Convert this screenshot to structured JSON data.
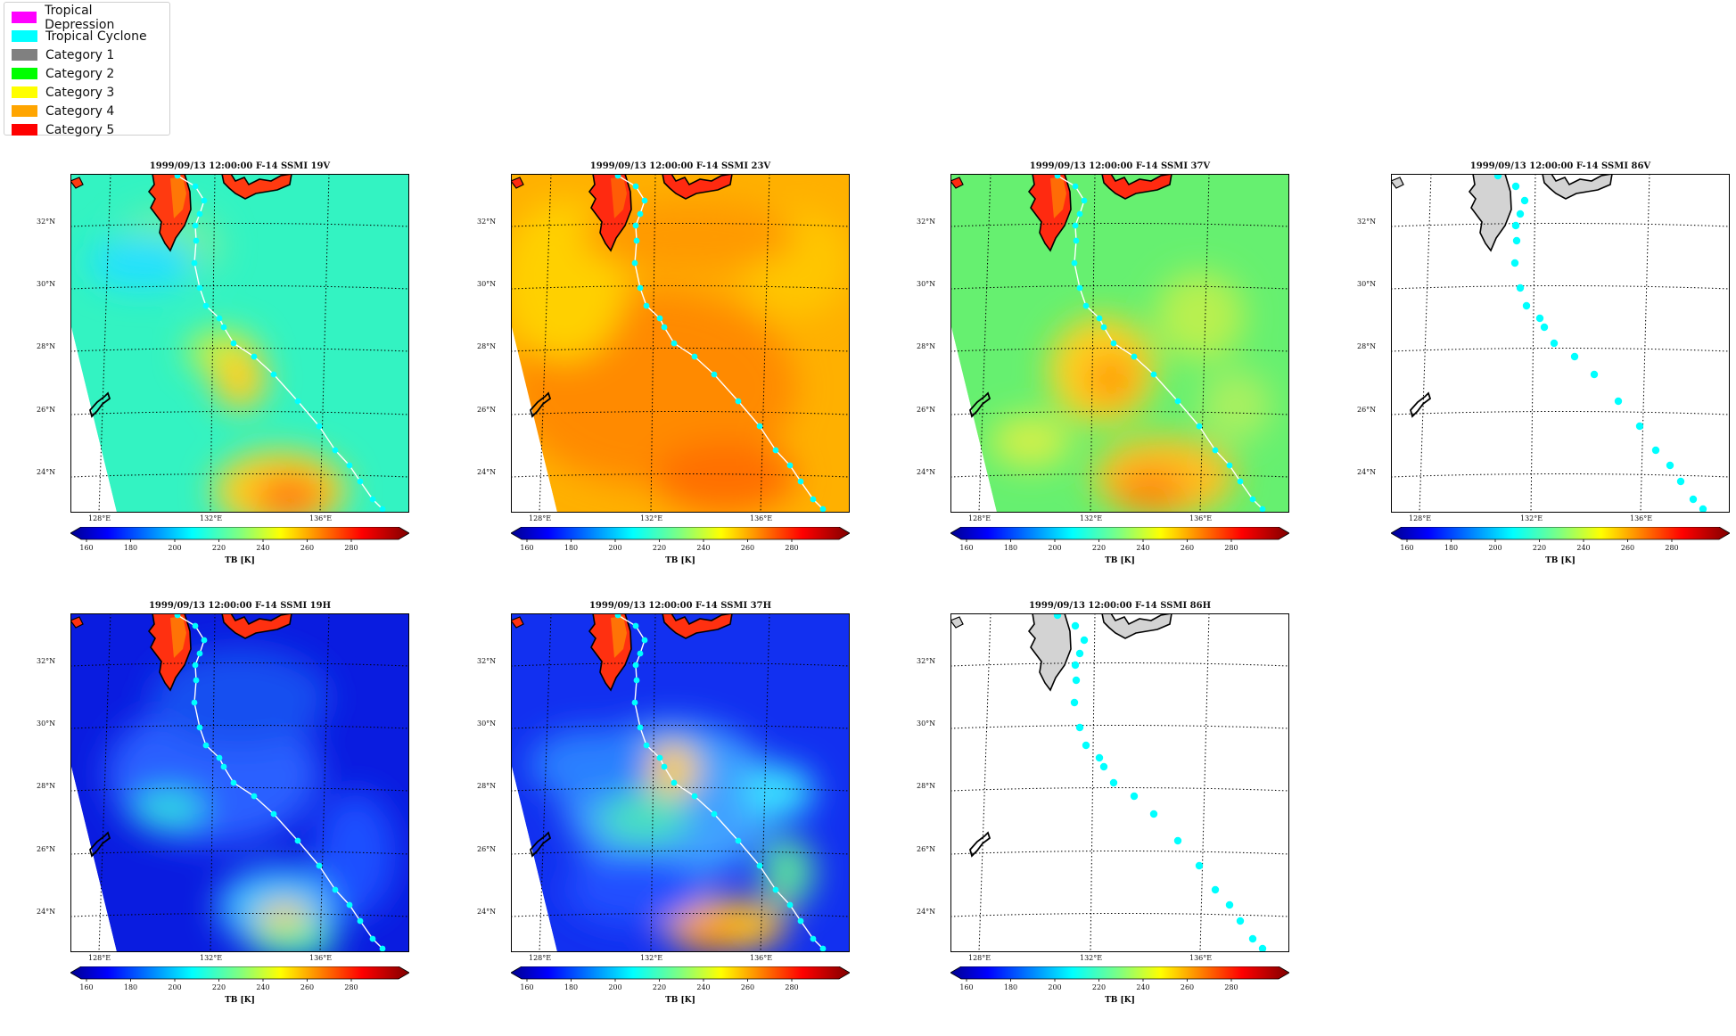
{
  "legend": {
    "items": [
      {
        "label": "Tropical Depression",
        "color": "#ff00ff"
      },
      {
        "label": "Tropical Cyclone",
        "color": "#00ffff"
      },
      {
        "label": "Category 1",
        "color": "#808080"
      },
      {
        "label": "Category 2",
        "color": "#00ff00"
      },
      {
        "label": "Category 3",
        "color": "#ffff00"
      },
      {
        "label": "Category 4",
        "color": "#ffa500"
      },
      {
        "label": "Category 5",
        "color": "#ff0000"
      }
    ]
  },
  "lat_labels": [
    "32°N",
    "30°N",
    "28°N",
    "26°N",
    "24°N"
  ],
  "lon_labels": [
    "128°E",
    "132°E",
    "136°E"
  ],
  "colorbar": {
    "ticks": [
      "160",
      "180",
      "200",
      "220",
      "240",
      "260",
      "280"
    ],
    "label": "TB [K]"
  },
  "panels": [
    {
      "title": "1999/09/13 12:00:00  F-14 SSMI 19V",
      "style": "19V"
    },
    {
      "title": "1999/09/13 12:00:00  F-14 SSMI 23V",
      "style": "23V"
    },
    {
      "title": "1999/09/13 12:00:00  F-14 SSMI 37V",
      "style": "37V"
    },
    {
      "title": "1999/09/13 12:00:00  F-14 SSMI 86V",
      "style": "86"
    },
    {
      "title": "1999/09/13 12:00:00  F-14 SSMI 19H",
      "style": "19H"
    },
    {
      "title": "1999/09/13 12:00:00  F-14 SSMI 37H",
      "style": "37H"
    },
    {
      "title": "1999/09/13 12:00:00  F-14 SSMI 86H",
      "style": "86"
    }
  ]
}
